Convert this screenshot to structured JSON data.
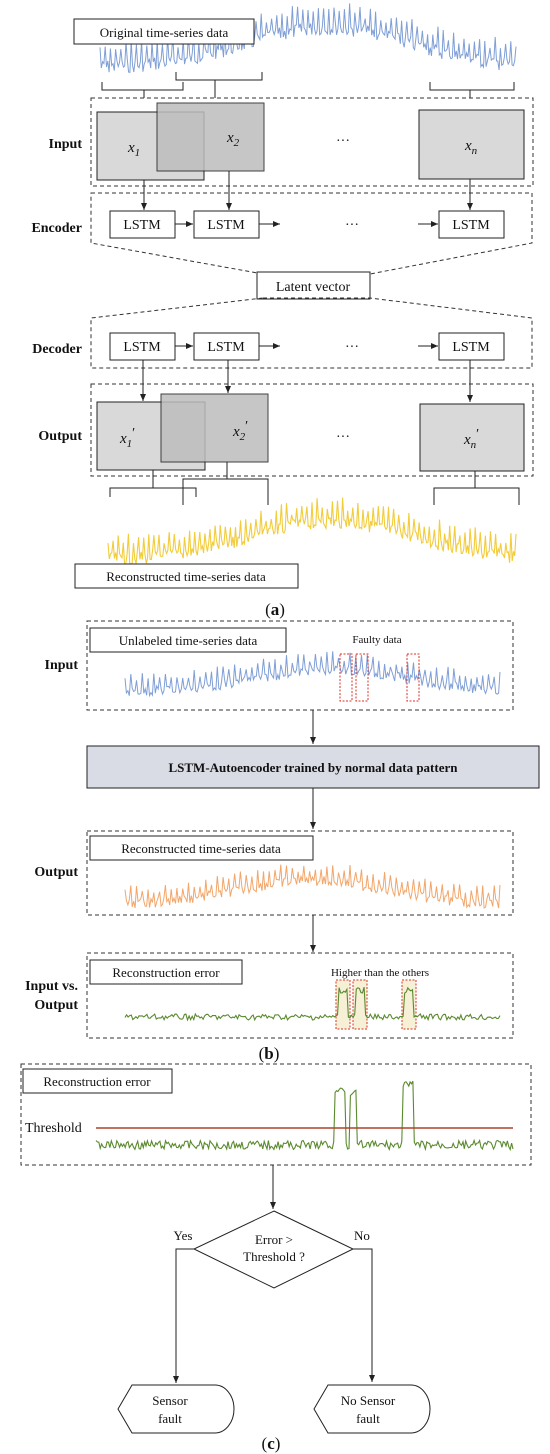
{
  "panel_a": {
    "caption": "(a)",
    "original_label": "Original time-series data",
    "input_row": "Input",
    "encoder_row": "Encoder",
    "decoder_row": "Decoder",
    "output_row": "Output",
    "x1": "x",
    "x1_sub": "1",
    "x2": "x",
    "x2_sub": "2",
    "xn": "x",
    "xn_sub": "n",
    "x1p": "x",
    "x1p_sub": "1",
    "x2p": "x",
    "x2p_sub": "2",
    "xnp": "x",
    "xnp_sub": "n",
    "prime": "′",
    "ellipsis": "···",
    "lstm": "LSTM",
    "latent": "Latent vector",
    "reconstructed_label": "Reconstructed time-series data",
    "colors": {
      "original": "#7f9fd6",
      "reconstructed": "#f2cc3a"
    }
  },
  "panel_b": {
    "caption": "(b)",
    "input_row": "Input",
    "unlabeled_label": "Unlabeled time-series data",
    "faulty_label": "Faulty data",
    "model_label": "LSTM-Autoencoder trained by normal data pattern",
    "output_row": "Output",
    "reconstructed_label": "Reconstructed time-series data",
    "compare_row_1": "Input vs.",
    "compare_row_2": "Output",
    "error_label": "Reconstruction error",
    "higher_label": "Higher than the others",
    "colors": {
      "input": "#7f9fd6",
      "output": "#f2a66a",
      "error": "#5a8a2e",
      "fault_box": "#d9332a"
    }
  },
  "panel_c": {
    "caption": "(c)",
    "error_label": "Reconstruction error",
    "threshold_label": "Threshold",
    "decision_line1": "Error >",
    "decision_line2": "Threshold ?",
    "yes": "Yes",
    "no": "No",
    "sensor_fault_1": "Sensor",
    "sensor_fault_2": "fault",
    "no_fault_1": "No Sensor",
    "no_fault_2": "fault",
    "colors": {
      "threshold": "#b0402a",
      "error": "#5a8a2e"
    }
  }
}
